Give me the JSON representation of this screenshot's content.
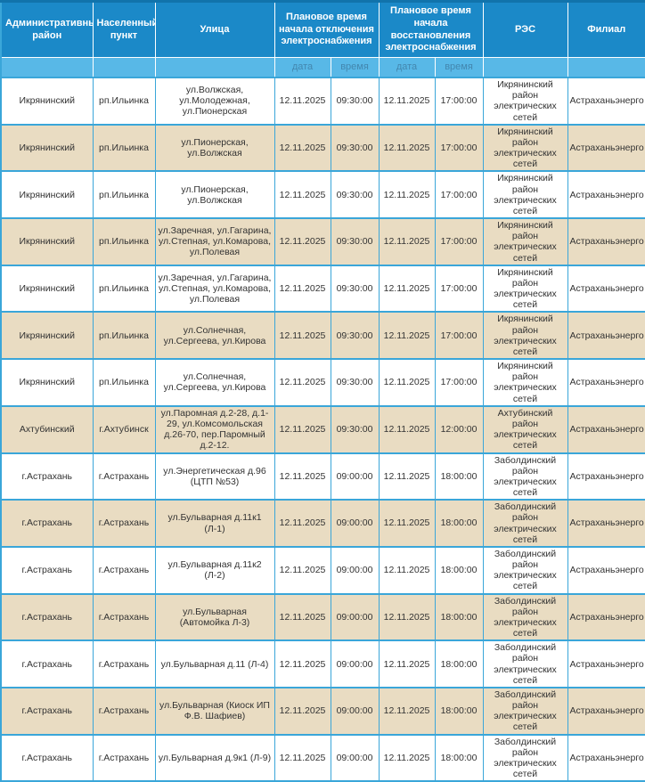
{
  "colors": {
    "header_bg": "#1b89c8",
    "header_top_strip": "#1173ab",
    "header_text": "#ffffff",
    "subheader_bg": "#58b8e7",
    "subheader_text": "#4387af",
    "row_alt_bg": "#e9dcc2",
    "row_bg": "#ffffff",
    "grid_border": "#3aa6d9",
    "cell_text": "#333333"
  },
  "table": {
    "header_cells": [
      "Административный район",
      "Населенный пункт",
      "Улица",
      "Плановое время начала отключения электроснабжения",
      "Плановое время начала восстановления электроснабжения",
      "РЭС",
      "Филиал"
    ],
    "subheader_labels": [
      "дата",
      "время",
      "дата",
      "время"
    ],
    "column_keys": [
      "district",
      "settlement",
      "street",
      "off-date",
      "off-time",
      "on-date",
      "on-time",
      "res",
      "branch"
    ]
  },
  "chart_data": {
    "type": "table",
    "title": "",
    "columns": [
      "Административный район",
      "Населенный пункт",
      "Улица",
      "Плановое время начала отключения электроснабжения — дата",
      "Плановое время начала отключения электроснабжения — время",
      "Плановое время начала восстановления электроснабжения — дата",
      "Плановое время начала восстановления электроснабжения — время",
      "РЭС",
      "Филиал"
    ],
    "rows": [
      [
        "Икрянинский",
        "рп.Ильинка",
        "ул.Волжская, ул.Молодежная, ул.Пионерская",
        "12.11.2025",
        "09:30:00",
        "12.11.2025",
        "17:00:00",
        "Икрянинский район электрических сетей",
        "Астраханьэнерго"
      ],
      [
        "Икрянинский",
        "рп.Ильинка",
        "ул.Пионерская, ул.Волжская",
        "12.11.2025",
        "09:30:00",
        "12.11.2025",
        "17:00:00",
        "Икрянинский район электрических сетей",
        "Астраханьэнерго"
      ],
      [
        "Икрянинский",
        "рп.Ильинка",
        "ул.Пионерская, ул.Волжская",
        "12.11.2025",
        "09:30:00",
        "12.11.2025",
        "17:00:00",
        "Икрянинский район электрических сетей",
        "Астраханьэнерго"
      ],
      [
        "Икрянинский",
        "рп.Ильинка",
        "ул.Заречная, ул.Гагарина, ул.Степная, ул.Комарова, ул.Полевая",
        "12.11.2025",
        "09:30:00",
        "12.11.2025",
        "17:00:00",
        "Икрянинский район электрических сетей",
        "Астраханьэнерго"
      ],
      [
        "Икрянинский",
        "рп.Ильинка",
        "ул.Заречная, ул.Гагарина, ул.Степная, ул.Комарова, ул.Полевая",
        "12.11.2025",
        "09:30:00",
        "12.11.2025",
        "17:00:00",
        "Икрянинский район электрических сетей",
        "Астраханьэнерго"
      ],
      [
        "Икрянинский",
        "рп.Ильинка",
        "ул.Солнечная, ул.Сергеева, ул.Кирова",
        "12.11.2025",
        "09:30:00",
        "12.11.2025",
        "17:00:00",
        "Икрянинский район электрических сетей",
        "Астраханьэнерго"
      ],
      [
        "Икрянинский",
        "рп.Ильинка",
        "ул.Солнечная, ул.Сергеева, ул.Кирова",
        "12.11.2025",
        "09:30:00",
        "12.11.2025",
        "17:00:00",
        "Икрянинский район электрических сетей",
        "Астраханьэнерго"
      ],
      [
        "Ахтубинский",
        "г.Ахтубинск",
        "ул.Паромная д.2-28, д.1-29, ул.Комсомольская д.26-70, пер.Паромный д.2-12.",
        "12.11.2025",
        "09:30:00",
        "12.11.2025",
        "12:00:00",
        "Ахтубинский район электрических сетей",
        "Астраханьэнерго"
      ],
      [
        "г.Астрахань",
        "г.Астрахань",
        "ул.Энергетическая д.96 (ЦТП №53)",
        "12.11.2025",
        "09:00:00",
        "12.11.2025",
        "18:00:00",
        "Заболдинский район электрических сетей",
        "Астраханьэнерго"
      ],
      [
        "г.Астрахань",
        "г.Астрахань",
        "ул.Бульварная д.11к1 (Л-1)",
        "12.11.2025",
        "09:00:00",
        "12.11.2025",
        "18:00:00",
        "Заболдинский район электрических сетей",
        "Астраханьэнерго"
      ],
      [
        "г.Астрахань",
        "г.Астрахань",
        "ул.Бульварная д.11к2 (Л-2)",
        "12.11.2025",
        "09:00:00",
        "12.11.2025",
        "18:00:00",
        "Заболдинский район электрических сетей",
        "Астраханьэнерго"
      ],
      [
        "г.Астрахань",
        "г.Астрахань",
        "ул.Бульварная (Автомойка Л-3)",
        "12.11.2025",
        "09:00:00",
        "12.11.2025",
        "18:00:00",
        "Заболдинский район электрических сетей",
        "Астраханьэнерго"
      ],
      [
        "г.Астрахань",
        "г.Астрахань",
        "ул.Бульварная д.11 (Л-4)",
        "12.11.2025",
        "09:00:00",
        "12.11.2025",
        "18:00:00",
        "Заболдинский район электрических сетей",
        "Астраханьэнерго"
      ],
      [
        "г.Астрахань",
        "г.Астрахань",
        "ул.Бульварная (Киоск ИП Ф.В. Шафиев)",
        "12.11.2025",
        "09:00:00",
        "12.11.2025",
        "18:00:00",
        "Заболдинский район электрических сетей",
        "Астраханьэнерго"
      ],
      [
        "г.Астрахань",
        "г.Астрахань",
        "ул.Бульварная д.9к1 (Л-9)",
        "12.11.2025",
        "09:00:00",
        "12.11.2025",
        "18:00:00",
        "Заболдинский район электрических сетей",
        "Астраханьэнерго"
      ]
    ]
  }
}
